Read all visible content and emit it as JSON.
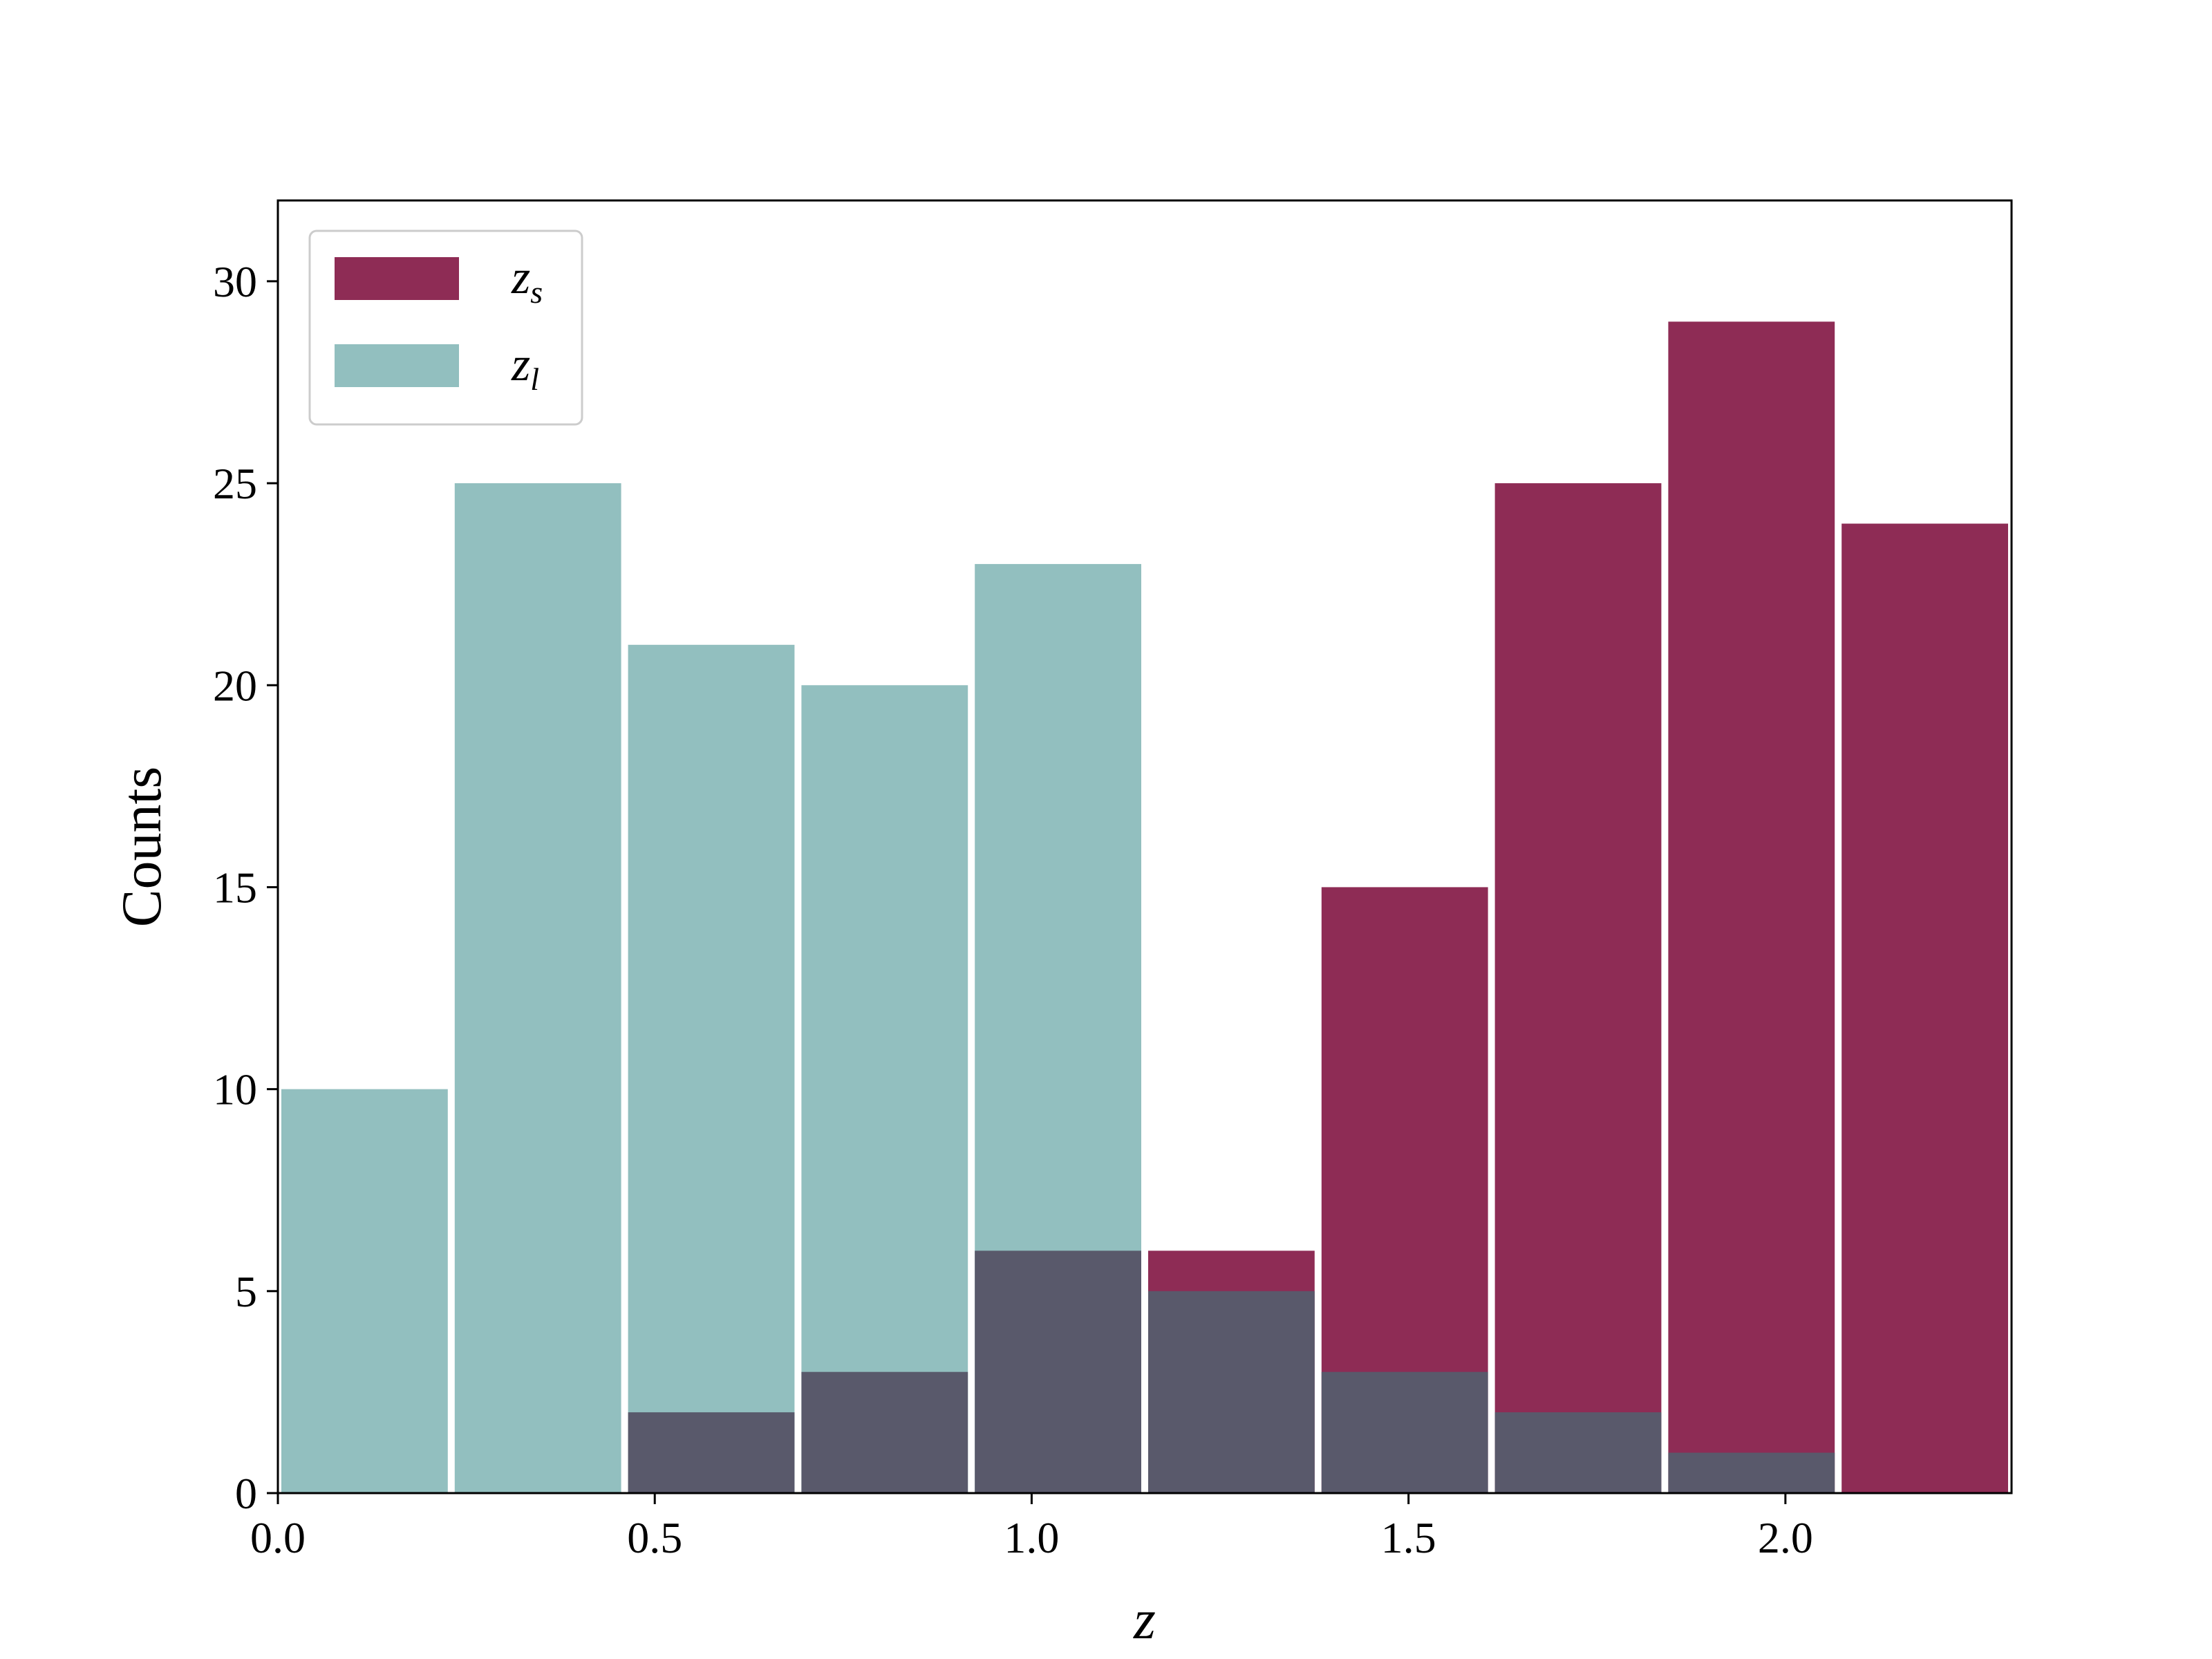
{
  "chart_data": {
    "type": "bar",
    "bins": [
      [
        0.0,
        0.23
      ],
      [
        0.23,
        0.46
      ],
      [
        0.46,
        0.69
      ],
      [
        0.69,
        0.92
      ],
      [
        0.92,
        1.15
      ],
      [
        1.15,
        1.38
      ],
      [
        1.38,
        1.61
      ],
      [
        1.61,
        1.84
      ],
      [
        1.84,
        2.07
      ],
      [
        2.07,
        2.3
      ]
    ],
    "series": [
      {
        "name": "z_s",
        "label_base": "z",
        "label_sub": "s",
        "color": "#8e2c55",
        "values": [
          0,
          0,
          2,
          3,
          6,
          6,
          15,
          25,
          29,
          24
        ]
      },
      {
        "name": "z_l",
        "label_base": "z",
        "label_sub": "l",
        "color": "#92bfbf",
        "values": [
          10,
          25,
          21,
          20,
          23,
          5,
          3,
          2,
          1,
          0
        ]
      }
    ],
    "overlap_color": "#59596b",
    "xlabel": "z",
    "ylabel": "Counts",
    "xlim": [
      0.0,
      2.3
    ],
    "ylim": [
      0,
      32
    ],
    "xticks": [
      0.0,
      0.5,
      1.0,
      1.5,
      2.0
    ],
    "xtick_labels": [
      "0.0",
      "0.5",
      "1.0",
      "1.5",
      "2.0"
    ],
    "yticks": [
      0,
      5,
      10,
      15,
      20,
      25,
      30
    ],
    "ytick_labels": [
      "0",
      "5",
      "10",
      "15",
      "20",
      "25",
      "30"
    ],
    "grid": false,
    "legend_position": "top-left"
  }
}
